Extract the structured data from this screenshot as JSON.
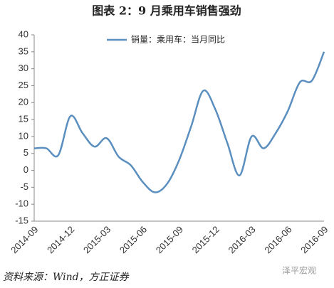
{
  "chart_data": {
    "type": "line",
    "title": "图表 2：9 月乘用车销售强劲",
    "categories": [
      "2014-09",
      null,
      null,
      "2014-12",
      null,
      null,
      "2015-03",
      null,
      null,
      "2015-06",
      null,
      null,
      "2015-09",
      null,
      null,
      "2015-12",
      null,
      null,
      "2016-03",
      null,
      null,
      "2016-06",
      null,
      null,
      "2016-09"
    ],
    "series": [
      {
        "name": "销量：乘用车：当月同比",
        "color": "#5b8fbf",
        "values": [
          6.5,
          6.5,
          4.5,
          16,
          11,
          7,
          9.5,
          4,
          1.5,
          -3.5,
          -6.5,
          -4,
          3,
          13,
          23.5,
          18,
          8,
          -1.5,
          10,
          6.5,
          11,
          17.5,
          26,
          26.5,
          35
        ]
      }
    ],
    "ylim": [
      -15,
      40
    ],
    "yticks": [
      -15,
      -10,
      -5,
      0,
      5,
      10,
      15,
      20,
      25,
      30,
      35,
      40
    ],
    "grid": false,
    "legend": "top-left"
  },
  "source": "资料来源：Wind，方正证券",
  "watermark": "泽平宏观"
}
